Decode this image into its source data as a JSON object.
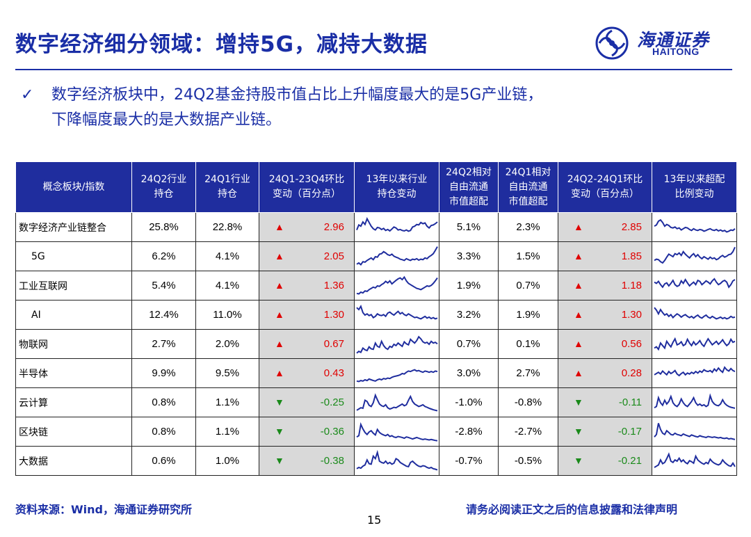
{
  "title": "数字经济细分领域：增持5G，减持大数据",
  "logo": {
    "cn": "海通证券",
    "en": "HAITONG"
  },
  "bullet": {
    "line1": "数字经济板块中，24Q2基金持股市值占比上升幅度最大的是5G产业链，",
    "line2": "下降幅度最大的是大数据产业链。"
  },
  "colors": {
    "brand": "#1a2ea6",
    "header_bg": "#1f2d9e",
    "up": "#e00000",
    "down": "#1a8a1a",
    "change_bg": "#d9d9d9"
  },
  "table": {
    "headers": [
      [
        "概念板块/指数"
      ],
      [
        "24Q2行业",
        "持仓"
      ],
      [
        "24Q1行业",
        "持仓"
      ],
      [
        "24Q1-23Q4环比",
        "变动（百分点）"
      ],
      [
        "13年以来行业",
        "持仓变动"
      ],
      [
        "24Q2相对",
        "自由流通",
        "市值超配"
      ],
      [
        "24Q1相对",
        "自由流通",
        "市值超配"
      ],
      [
        "24Q2-24Q1环比",
        "变动（百分点）"
      ],
      [
        "13年以来超配",
        "比例变动"
      ]
    ],
    "rows": [
      {
        "name": "数字经济产业链整合",
        "indent": false,
        "q2": "25.8%",
        "q1": "22.8%",
        "chg1_dir": "up",
        "chg1_arrow": "▲",
        "chg1": "2.96",
        "rel_q2": "5.1%",
        "rel_q1": "2.3%",
        "chg2_dir": "up",
        "chg2_arrow": "▲",
        "chg2": "2.85"
      },
      {
        "name": "5G",
        "indent": true,
        "q2": "6.2%",
        "q1": "4.1%",
        "chg1_dir": "up",
        "chg1_arrow": "▲",
        "chg1": "2.05",
        "rel_q2": "3.3%",
        "rel_q1": "1.5%",
        "chg2_dir": "up",
        "chg2_arrow": "▲",
        "chg2": "1.85"
      },
      {
        "name": "工业互联网",
        "indent": false,
        "q2": "5.4%",
        "q1": "4.1%",
        "chg1_dir": "up",
        "chg1_arrow": "▲",
        "chg1": "1.36",
        "rel_q2": "1.9%",
        "rel_q1": "0.7%",
        "chg2_dir": "up",
        "chg2_arrow": "▲",
        "chg2": "1.18"
      },
      {
        "name": "AI",
        "indent": true,
        "q2": "12.4%",
        "q1": "11.0%",
        "chg1_dir": "up",
        "chg1_arrow": "▲",
        "chg1": "1.30",
        "rel_q2": "3.2%",
        "rel_q1": "1.9%",
        "chg2_dir": "up",
        "chg2_arrow": "▲",
        "chg2": "1.30"
      },
      {
        "name": "物联网",
        "indent": false,
        "q2": "2.7%",
        "q1": "2.0%",
        "chg1_dir": "up",
        "chg1_arrow": "▲",
        "chg1": "0.67",
        "rel_q2": "0.7%",
        "rel_q1": "0.1%",
        "chg2_dir": "up",
        "chg2_arrow": "▲",
        "chg2": "0.56"
      },
      {
        "name": "半导体",
        "indent": false,
        "q2": "9.9%",
        "q1": "9.5%",
        "chg1_dir": "up",
        "chg1_arrow": "▲",
        "chg1": "0.43",
        "rel_q2": "3.0%",
        "rel_q1": "2.7%",
        "chg2_dir": "up",
        "chg2_arrow": "▲",
        "chg2": "0.28"
      },
      {
        "name": "云计算",
        "indent": false,
        "q2": "0.8%",
        "q1": "1.1%",
        "chg1_dir": "down",
        "chg1_arrow": "▼",
        "chg1": "-0.25",
        "rel_q2": "-1.0%",
        "rel_q1": "-0.8%",
        "chg2_dir": "down",
        "chg2_arrow": "▼",
        "chg2": "-0.11"
      },
      {
        "name": "区块链",
        "indent": false,
        "q2": "0.8%",
        "q1": "1.1%",
        "chg1_dir": "down",
        "chg1_arrow": "▼",
        "chg1": "-0.36",
        "rel_q2": "-2.8%",
        "rel_q1": "-2.7%",
        "chg2_dir": "down",
        "chg2_arrow": "▼",
        "chg2": "-0.17"
      },
      {
        "name": "大数据",
        "indent": false,
        "q2": "0.6%",
        "q1": "1.0%",
        "chg1_dir": "down",
        "chg1_arrow": "▼",
        "chg1": "-0.38",
        "rel_q2": "-0.7%",
        "rel_q1": "-0.5%",
        "chg2_dir": "down",
        "chg2_arrow": "▼",
        "chg2": "-0.21"
      }
    ]
  },
  "sparklines": {
    "holding": [
      [
        40,
        60,
        55,
        72,
        62,
        85,
        70,
        55,
        45,
        40,
        50,
        48,
        42,
        46,
        38,
        42,
        36,
        44,
        52,
        48,
        40,
        42,
        38,
        36,
        40,
        35,
        38,
        52,
        55,
        62,
        60,
        70,
        65,
        68,
        55,
        48,
        58,
        60,
        65,
        72
      ],
      [
        20,
        25,
        18,
        30,
        28,
        35,
        40,
        45,
        38,
        50,
        48,
        60,
        62,
        70,
        65,
        58,
        55,
        60,
        52,
        48,
        45,
        40,
        38,
        35,
        42,
        38,
        35,
        40,
        38,
        42,
        36,
        40,
        38,
        45,
        42,
        50,
        55,
        62,
        75,
        90
      ],
      [
        20,
        18,
        25,
        22,
        30,
        28,
        35,
        40,
        45,
        42,
        50,
        48,
        55,
        60,
        68,
        62,
        70,
        58,
        65,
        72,
        78,
        82,
        75,
        85,
        70,
        60,
        55,
        50,
        45,
        40,
        38,
        35,
        40,
        45,
        50,
        48,
        52,
        60,
        70,
        82
      ],
      [
        80,
        72,
        85,
        60,
        50,
        55,
        48,
        52,
        40,
        45,
        55,
        50,
        48,
        52,
        45,
        58,
        62,
        55,
        50,
        58,
        65,
        55,
        60,
        52,
        48,
        55,
        50,
        45,
        40,
        42,
        38,
        35,
        40,
        45,
        38,
        42,
        36,
        40,
        35,
        38
      ],
      [
        15,
        22,
        18,
        35,
        28,
        25,
        40,
        32,
        30,
        55,
        42,
        38,
        62,
        45,
        35,
        30,
        42,
        38,
        50,
        45,
        55,
        48,
        42,
        60,
        52,
        48,
        70,
        62,
        55,
        65,
        80,
        72,
        60,
        55,
        58,
        50,
        62,
        55,
        58,
        52
      ],
      [
        20,
        18,
        22,
        20,
        25,
        22,
        28,
        25,
        22,
        20,
        25,
        28,
        25,
        30,
        28,
        32,
        30,
        35,
        38,
        40,
        42,
        45,
        50,
        48,
        55,
        60,
        58,
        62,
        65,
        60,
        62,
        58,
        55,
        60,
        58,
        55,
        58,
        55,
        60,
        58
      ],
      [
        20,
        25,
        30,
        28,
        60,
        55,
        40,
        35,
        50,
        80,
        62,
        45,
        38,
        35,
        42,
        30,
        25,
        28,
        32,
        30,
        35,
        40,
        45,
        38,
        42,
        60,
        75,
        55,
        45,
        40,
        35,
        38,
        42,
        35,
        32,
        28,
        25,
        22,
        20,
        18
      ],
      [
        30,
        35,
        80,
        62,
        48,
        40,
        50,
        55,
        45,
        38,
        60,
        48,
        42,
        38,
        35,
        40,
        32,
        35,
        30,
        28,
        32,
        30,
        28,
        25,
        30,
        28,
        25,
        22,
        25,
        28,
        25,
        22,
        20,
        22,
        20,
        18,
        20,
        18,
        16,
        15
      ],
      [
        20,
        25,
        22,
        30,
        35,
        55,
        40,
        38,
        70,
        60,
        85,
        50,
        45,
        42,
        50,
        40,
        45,
        38,
        42,
        60,
        55,
        45,
        40,
        35,
        30,
        28,
        45,
        50,
        42,
        35,
        30,
        28,
        32,
        30,
        25,
        22,
        25,
        20,
        18,
        15
      ]
    ],
    "overweight": [
      [
        55,
        60,
        75,
        80,
        70,
        55,
        62,
        58,
        50,
        48,
        52,
        45,
        48,
        40,
        45,
        50,
        48,
        42,
        38,
        45,
        40,
        38,
        42,
        40,
        35,
        38,
        42,
        45,
        40,
        38,
        42,
        36,
        40,
        35,
        38,
        32,
        35,
        40,
        38,
        45
      ],
      [
        35,
        40,
        38,
        30,
        25,
        35,
        48,
        60,
        55,
        50,
        62,
        58,
        65,
        55,
        70,
        60,
        52,
        45,
        55,
        62,
        50,
        58,
        48,
        42,
        50,
        45,
        40,
        48,
        42,
        45,
        38,
        42,
        50,
        55,
        48,
        52,
        58,
        60,
        70,
        88
      ],
      [
        65,
        60,
        68,
        55,
        45,
        58,
        62,
        50,
        60,
        72,
        55,
        48,
        52,
        70,
        60,
        75,
        62,
        50,
        58,
        65,
        55,
        72,
        68,
        55,
        62,
        70,
        65,
        58,
        70,
        78,
        65,
        55,
        60,
        68,
        72,
        65,
        45,
        55,
        70,
        75
      ],
      [
        80,
        70,
        55,
        72,
        60,
        50,
        55,
        45,
        52,
        40,
        48,
        55,
        50,
        42,
        48,
        52,
        45,
        40,
        45,
        38,
        45,
        50,
        42,
        38,
        45,
        50,
        42,
        38,
        45,
        40,
        35,
        38,
        42,
        36,
        40,
        35,
        38,
        45,
        40,
        42
      ],
      [
        35,
        40,
        30,
        55,
        45,
        35,
        62,
        50,
        40,
        58,
        72,
        48,
        52,
        60,
        45,
        50,
        70,
        55,
        45,
        60,
        48,
        55,
        65,
        50,
        42,
        58,
        72,
        60,
        48,
        55,
        62,
        50,
        58,
        68,
        55,
        45,
        52,
        70,
        58,
        62
      ],
      [
        45,
        50,
        55,
        48,
        60,
        52,
        45,
        58,
        50,
        55,
        62,
        48,
        42,
        50,
        55,
        45,
        52,
        48,
        55,
        50,
        58,
        52,
        60,
        55,
        65,
        60,
        58,
        62,
        55,
        68,
        60,
        72,
        62,
        55,
        75,
        65,
        60,
        70,
        62,
        58
      ],
      [
        30,
        35,
        70,
        50,
        40,
        60,
        45,
        55,
        75,
        50,
        40,
        35,
        45,
        65,
        50,
        40,
        35,
        45,
        55,
        70,
        50,
        40,
        45,
        38,
        42,
        35,
        40,
        78,
        55,
        45,
        40,
        38,
        45,
        62,
        48,
        40,
        35,
        32,
        30,
        28
      ],
      [
        30,
        40,
        85,
        60,
        45,
        40,
        55,
        48,
        40,
        38,
        45,
        40,
        38,
        35,
        42,
        38,
        35,
        32,
        38,
        35,
        32,
        30,
        35,
        32,
        30,
        28,
        32,
        30,
        28,
        30,
        28,
        26,
        28,
        25,
        24,
        26,
        22,
        24,
        22,
        20
      ],
      [
        25,
        30,
        35,
        55,
        40,
        45,
        60,
        78,
        50,
        45,
        55,
        50,
        62,
        48,
        55,
        45,
        40,
        52,
        48,
        42,
        70,
        55,
        48,
        42,
        38,
        45,
        40,
        58,
        48,
        42,
        38,
        35,
        40,
        55,
        45,
        38,
        32,
        30,
        42,
        28
      ]
    ]
  },
  "footer": {
    "source": "资料来源：Wind，海通证券研究所",
    "disclaimer": "请务必阅读正文之后的信息披露和法律声明",
    "page": "15"
  }
}
